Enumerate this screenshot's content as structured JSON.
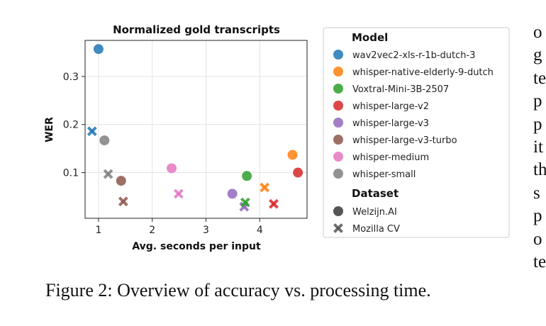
{
  "caption": "Figure 2: Overview of accuracy vs. processing time.",
  "side_column_fragments": [
    "o",
    "g",
    "te",
    "p",
    "p",
    "it",
    "th",
    "s",
    "p",
    "o",
    "te"
  ],
  "chart_data": {
    "type": "scatter",
    "title": "Normalized gold transcripts",
    "xlabel": "Avg. seconds per input",
    "ylabel": "WER",
    "xlim": [
      0.75,
      4.88
    ],
    "ylim": [
      0.005,
      0.375
    ],
    "xticks": [
      1,
      2,
      3,
      4
    ],
    "xtick_labels": [
      "1",
      "2",
      "3",
      "4"
    ],
    "yticks": [
      0.1,
      0.2,
      0.3
    ],
    "ytick_labels": [
      "0.1",
      "0.2",
      "0.3"
    ],
    "grid": true,
    "legend_position": "right",
    "legend": {
      "model_title": "Model",
      "dataset_title": "Dataset"
    },
    "models": [
      {
        "name": "wav2vec2-xls-r-1b-dutch-3",
        "color": "#1f77b4"
      },
      {
        "name": "whisper-native-elderly-9-dutch",
        "color": "#ff7f0e"
      },
      {
        "name": "Voxtral-Mini-3B-2507",
        "color": "#2ca02c"
      },
      {
        "name": "whisper-large-v2",
        "color": "#d62728"
      },
      {
        "name": "whisper-large-v3",
        "color": "#9467bd"
      },
      {
        "name": "whisper-large-v3-turbo",
        "color": "#8c564b"
      },
      {
        "name": "whisper-medium",
        "color": "#e377c2"
      },
      {
        "name": "whisper-small",
        "color": "#7f7f7f"
      }
    ],
    "datasets": [
      {
        "name": "Welzijn.AI",
        "marker": "circle"
      },
      {
        "name": "Mozilla CV",
        "marker": "x"
      }
    ],
    "points": [
      {
        "model": "wav2vec2-xls-r-1b-dutch-3",
        "dataset": "Welzijn.AI",
        "x": 1.0,
        "y": 0.357
      },
      {
        "model": "wav2vec2-xls-r-1b-dutch-3",
        "dataset": "Mozilla CV",
        "x": 0.88,
        "y": 0.186
      },
      {
        "model": "whisper-small",
        "dataset": "Welzijn.AI",
        "x": 1.11,
        "y": 0.167
      },
      {
        "model": "whisper-small",
        "dataset": "Mozilla CV",
        "x": 1.18,
        "y": 0.097
      },
      {
        "model": "whisper-large-v3-turbo",
        "dataset": "Welzijn.AI",
        "x": 1.42,
        "y": 0.083
      },
      {
        "model": "whisper-large-v3-turbo",
        "dataset": "Mozilla CV",
        "x": 1.46,
        "y": 0.04
      },
      {
        "model": "whisper-medium",
        "dataset": "Welzijn.AI",
        "x": 2.36,
        "y": 0.109
      },
      {
        "model": "whisper-medium",
        "dataset": "Mozilla CV",
        "x": 2.49,
        "y": 0.056
      },
      {
        "model": "whisper-large-v3",
        "dataset": "Welzijn.AI",
        "x": 3.49,
        "y": 0.056
      },
      {
        "model": "whisper-large-v3",
        "dataset": "Mozilla CV",
        "x": 3.71,
        "y": 0.029
      },
      {
        "model": "Voxtral-Mini-3B-2507",
        "dataset": "Welzijn.AI",
        "x": 3.76,
        "y": 0.093
      },
      {
        "model": "Voxtral-Mini-3B-2507",
        "dataset": "Mozilla CV",
        "x": 3.73,
        "y": 0.038
      },
      {
        "model": "whisper-native-elderly-9-dutch",
        "dataset": "Welzijn.AI",
        "x": 4.61,
        "y": 0.137
      },
      {
        "model": "whisper-native-elderly-9-dutch",
        "dataset": "Mozilla CV",
        "x": 4.09,
        "y": 0.069
      },
      {
        "model": "whisper-large-v2",
        "dataset": "Welzijn.AI",
        "x": 4.71,
        "y": 0.1
      },
      {
        "model": "whisper-large-v2",
        "dataset": "Mozilla CV",
        "x": 4.26,
        "y": 0.035
      }
    ]
  }
}
